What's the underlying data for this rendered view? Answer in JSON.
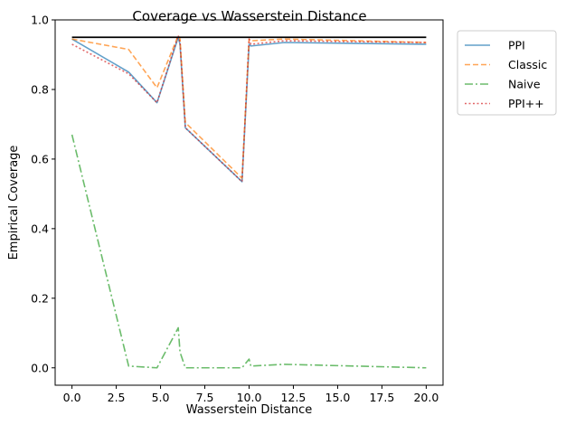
{
  "chart_data": {
    "type": "line",
    "title": "Coverage vs Wasserstein Distance",
    "xlabel": "Wasserstein Distance",
    "ylabel": "Empirical Coverage",
    "xlim": [
      -0.95,
      20.95
    ],
    "ylim": [
      -0.05,
      1.0
    ],
    "xticks": [
      0.0,
      2.5,
      5.0,
      7.5,
      10.0,
      12.5,
      15.0,
      17.5,
      20.0
    ],
    "xtick_labels": [
      "0.0",
      "2.5",
      "5.0",
      "7.5",
      "10.0",
      "12.5",
      "15.0",
      "17.5",
      "20.0"
    ],
    "yticks": [
      0.0,
      0.2,
      0.4,
      0.6,
      0.8,
      1.0
    ],
    "ytick_labels": [
      "0.0",
      "0.2",
      "0.4",
      "0.6",
      "0.8",
      "1.0"
    ],
    "grid": false,
    "legend": "outside-right-top",
    "reference_line": {
      "y": 0.95,
      "color": "#000000"
    },
    "x": [
      0.0,
      3.2,
      4.8,
      6.0,
      6.1,
      6.4,
      9.6,
      10.0,
      10.1,
      12.0,
      20.0
    ],
    "series": [
      {
        "name": "PPI",
        "style": "solid",
        "color": "#1f77b4",
        "values": [
          0.945,
          0.85,
          0.762,
          0.95,
          0.93,
          0.69,
          0.535,
          0.93,
          0.925,
          0.935,
          0.93
        ]
      },
      {
        "name": "Classic",
        "style": "dashed",
        "color": "#ff7f0e",
        "values": [
          0.945,
          0.915,
          0.805,
          0.955,
          0.945,
          0.705,
          0.545,
          0.945,
          0.94,
          0.945,
          0.935
        ]
      },
      {
        "name": "Naive",
        "style": "dashdot",
        "color": "#2ca02c",
        "values": [
          0.67,
          0.005,
          0.0,
          0.115,
          0.045,
          0.0,
          0.0,
          0.025,
          0.005,
          0.01,
          0.0
        ]
      },
      {
        "name": "PPI++",
        "style": "dotted",
        "color": "#d62728",
        "values": [
          0.93,
          0.845,
          0.762,
          0.955,
          0.935,
          0.69,
          0.535,
          0.945,
          0.93,
          0.94,
          0.935
        ]
      }
    ]
  }
}
